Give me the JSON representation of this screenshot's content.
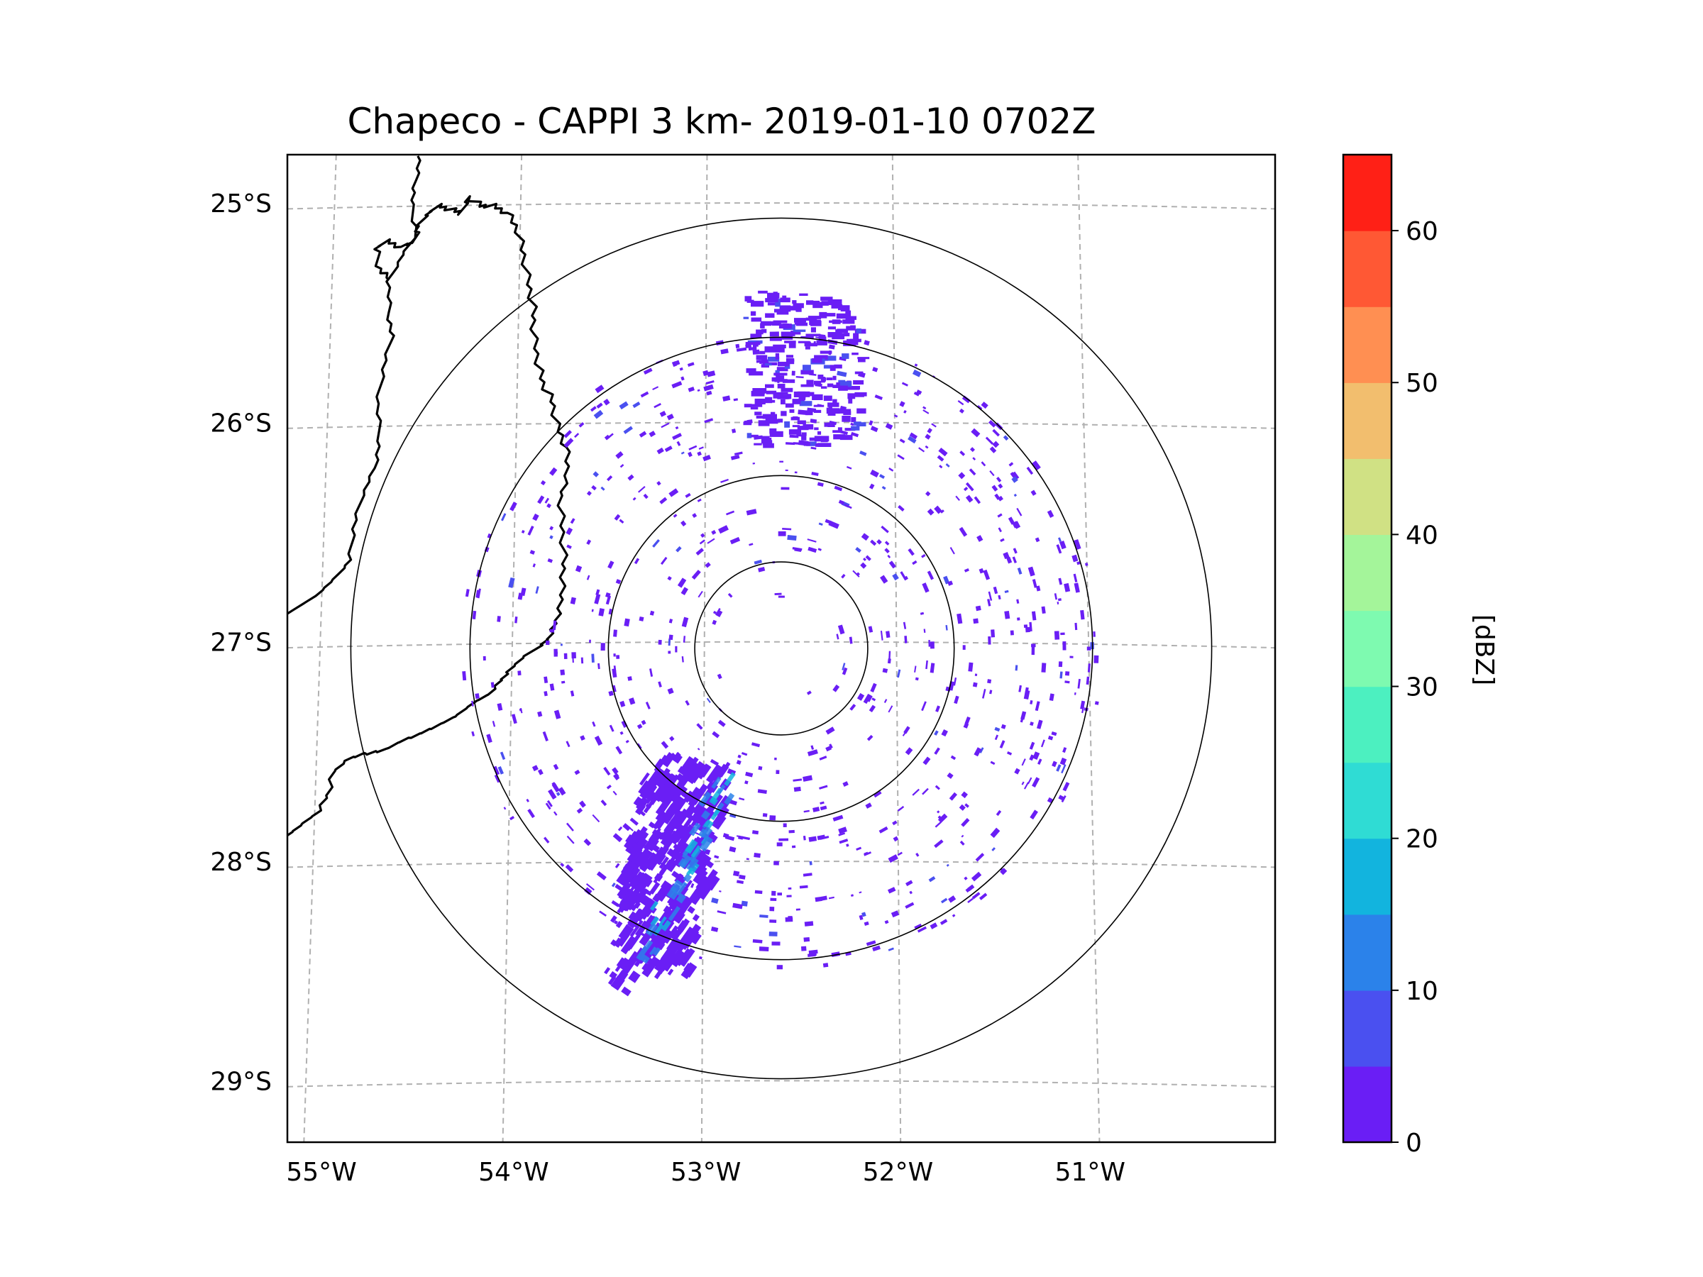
{
  "chart_data": {
    "type": "heatmap",
    "title": "Chapeco - CAPPI 3 km- 2019-01-10 0702Z",
    "projection": "map (radar CAPPI)",
    "map": {
      "lon_ticks": [
        -55,
        -54,
        -53,
        -52,
        -51
      ],
      "lon_tick_labels": [
        "55°W",
        "54°W",
        "53°W",
        "52°W",
        "51°W"
      ],
      "lat_ticks": [
        -25,
        -26,
        -27,
        -28,
        -29
      ],
      "lat_tick_labels": [
        "25°S",
        "26°S",
        "27°S",
        "28°S",
        "29°S"
      ],
      "lon_range": [
        -55.17,
        -50.03
      ],
      "lat_range": [
        -29.28,
        -24.78
      ],
      "grid": "dashed",
      "radar_site": {
        "name": "Chapeco",
        "lon": -52.6,
        "lat": -27.03
      },
      "range_rings_deg": [
        0.45,
        0.9,
        1.62,
        2.24
      ]
    },
    "echo_regions": [
      {
        "name": "southwest band (strongest)",
        "lon_range": [
          -53.7,
          -53.0
        ],
        "lat_range": [
          -28.6,
          -27.6
        ],
        "max_dbz": 20
      },
      {
        "name": "northern scattered field",
        "lon_range": [
          -52.8,
          -52.2
        ],
        "lat_range": [
          -26.1,
          -25.4
        ],
        "max_dbz": 10
      },
      {
        "name": "widespread light echoes",
        "coverage": "within ~1.7° of radar",
        "max_dbz": 5
      }
    ],
    "colorbar": {
      "label": "[dBZ]",
      "range": [
        0,
        65
      ],
      "ticks": [
        0,
        10,
        20,
        30,
        40,
        50,
        60
      ],
      "tick_labels": [
        "0",
        "10",
        "20",
        "30",
        "40",
        "50",
        "60"
      ],
      "bins": [
        0,
        5,
        10,
        15,
        20,
        25,
        30,
        35,
        40,
        45,
        50,
        55,
        60,
        65
      ],
      "colors": [
        "#6a1ef5",
        "#4a50f0",
        "#2b82ea",
        "#12b4de",
        "#2fdcd4",
        "#4cf0c0",
        "#7efab0",
        "#a4f59a",
        "#d0e184",
        "#f2be6e",
        "#ff8f52",
        "#ff5834",
        "#ff2016"
      ]
    }
  }
}
